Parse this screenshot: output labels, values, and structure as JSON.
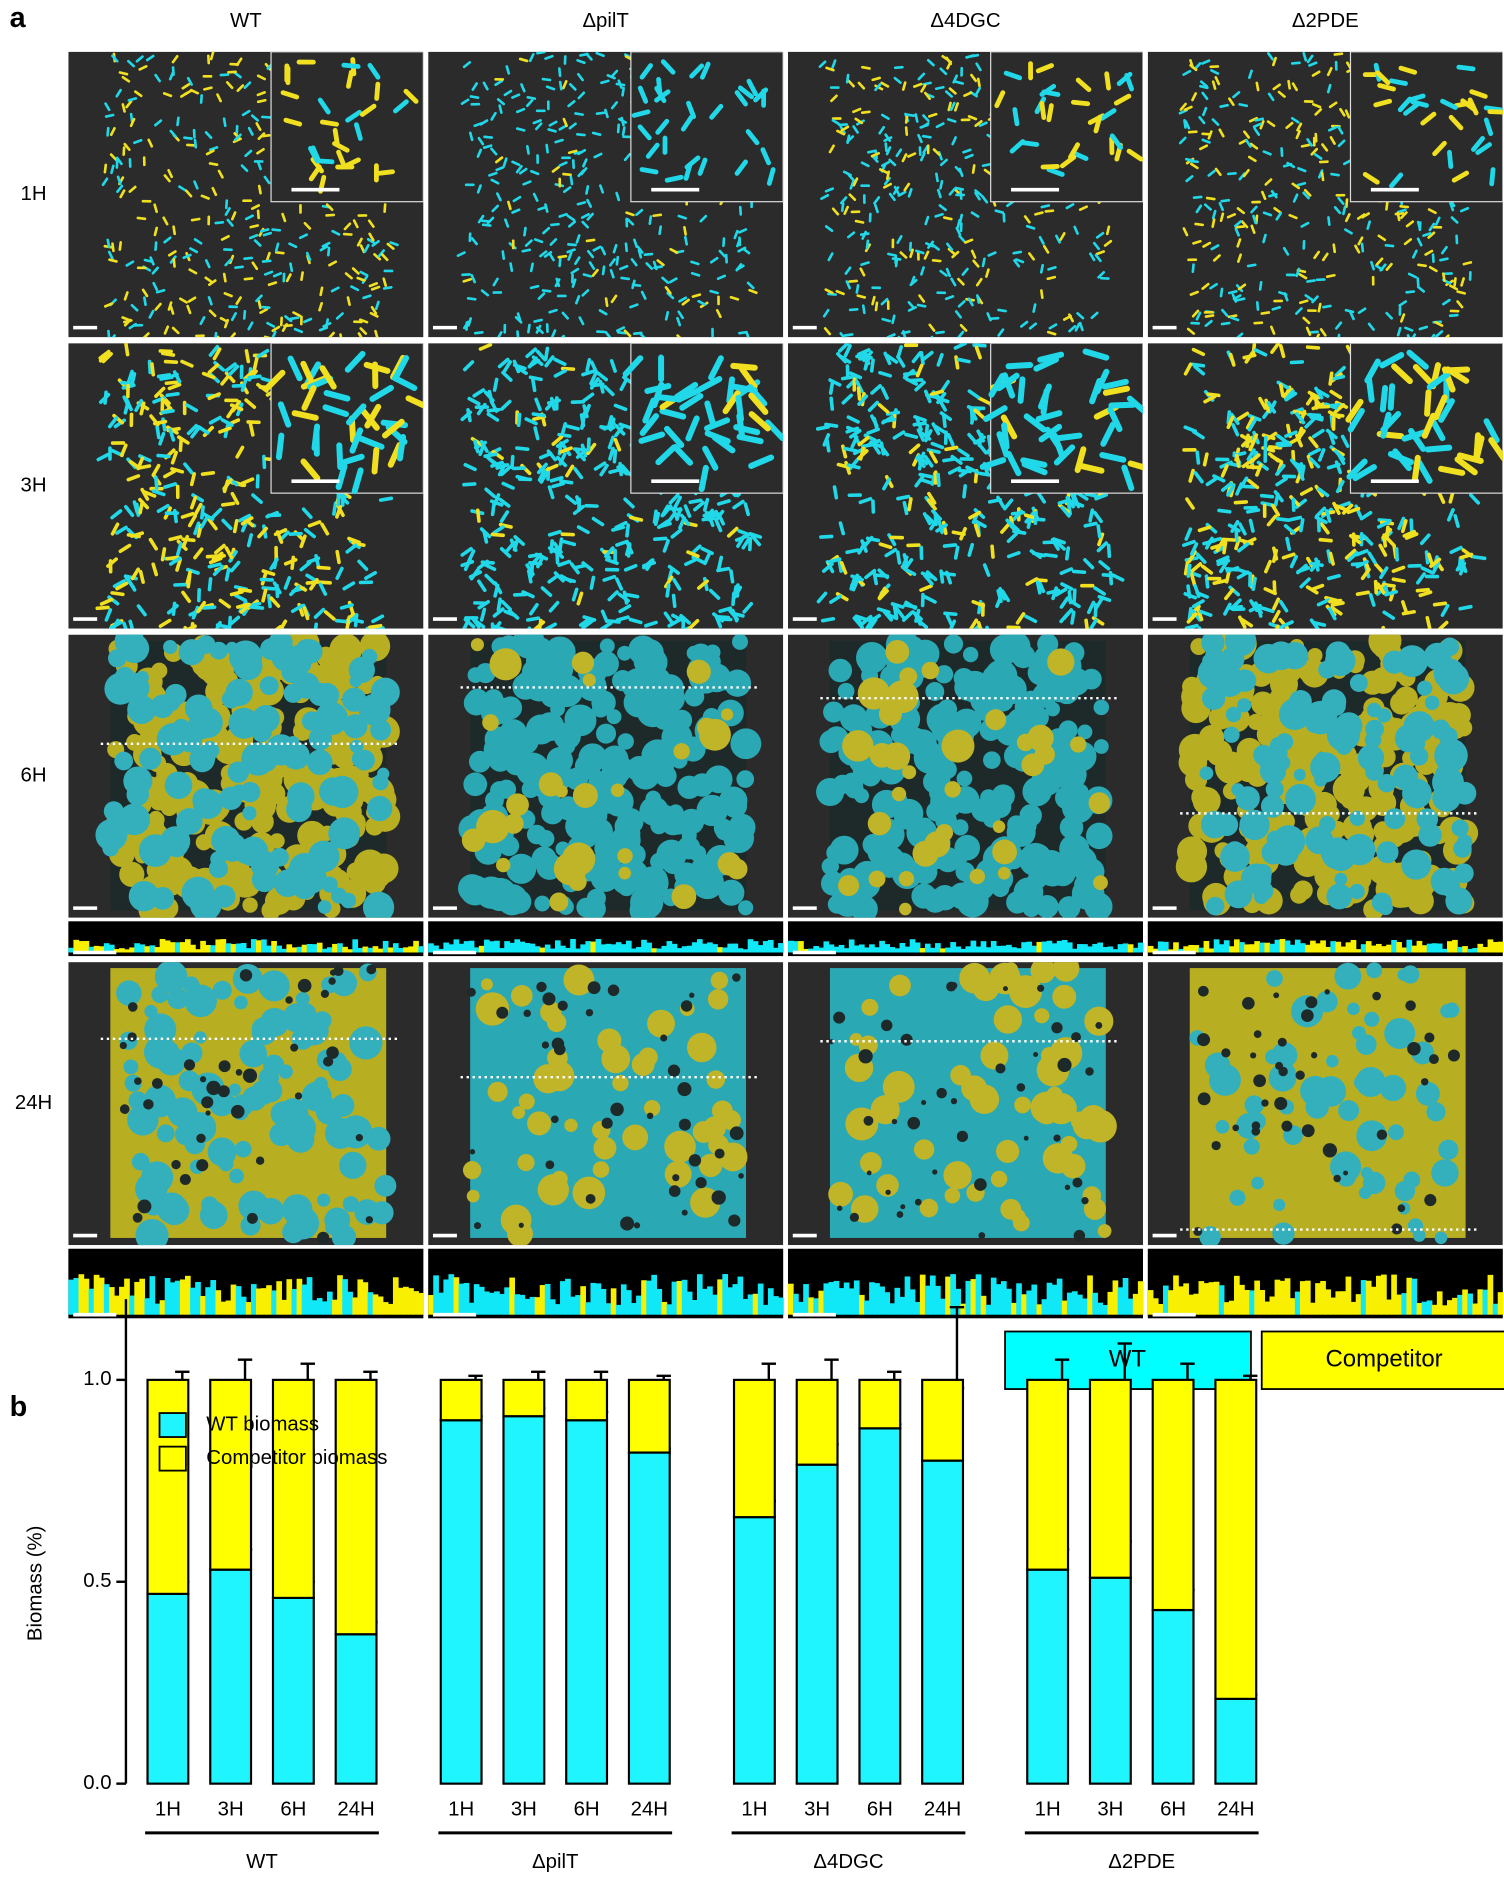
{
  "panel_a": {
    "label": "a",
    "columns": [
      "WT",
      "ΔpilT",
      "Δ4DGC",
      "Δ2PDE"
    ],
    "rows": [
      "1H",
      "3H",
      "6H",
      "24H"
    ],
    "legend": [
      {
        "name": "WT",
        "color": "#00ffff"
      },
      {
        "name": "Competitor",
        "color": "#ffff00"
      }
    ]
  },
  "chart_data": {
    "type": "bar",
    "stacked": true,
    "panel_label": "b",
    "y_label": "Biomass (%)",
    "categories": [
      "1H",
      "3H",
      "6H",
      "24H",
      "1H",
      "3H",
      "6H",
      "24H",
      "1H",
      "3H",
      "6H",
      "24H",
      "1H",
      "3H",
      "6H",
      "24H"
    ],
    "groups": [
      "WT",
      "ΔpilT",
      "Δ4DGC",
      "Δ2PDE"
    ],
    "series": [
      {
        "name": "WT biomass",
        "color": "#1ff5ff",
        "values": [
          0.47,
          0.53,
          0.46,
          0.37,
          0.9,
          0.91,
          0.9,
          0.82,
          0.66,
          0.79,
          0.88,
          0.8,
          0.53,
          0.51,
          0.43,
          0.21
        ],
        "errors": [
          0.03,
          0.05,
          0.04,
          0.03,
          0.01,
          0.02,
          0.02,
          0.01,
          0.04,
          0.05,
          0.01,
          0.18,
          0.05,
          0.09,
          0.05,
          0.01
        ]
      },
      {
        "name": "Competitor biomass",
        "color": "#ffff00",
        "values": [
          0.53,
          0.47,
          0.54,
          0.63,
          0.1,
          0.09,
          0.1,
          0.18,
          0.34,
          0.21,
          0.12,
          0.2,
          0.47,
          0.49,
          0.57,
          0.79
        ],
        "errors": [
          0.02,
          0.05,
          0.04,
          0.02,
          0.01,
          0.02,
          0.02,
          0.01,
          0.04,
          0.05,
          0.02,
          0.18,
          0.05,
          0.09,
          0.04,
          0.01
        ]
      }
    ],
    "ylim": [
      0,
      1.2
    ],
    "yticks": [
      {
        "value": 0,
        "label": "0.0"
      },
      {
        "value": 0.5,
        "label": "0.5"
      },
      {
        "value": 1,
        "label": "1.0"
      }
    ]
  }
}
